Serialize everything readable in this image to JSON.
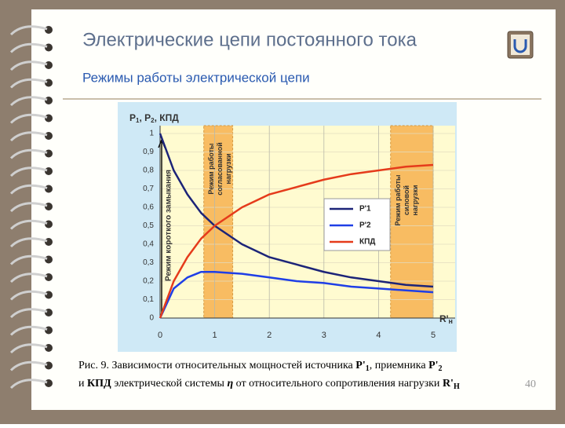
{
  "header": {
    "title": "Электрические цепи постоянного тока",
    "subtitle": "Режимы работы электрической цепи"
  },
  "chart_data": {
    "type": "line",
    "y_label": [
      "P",
      "1",
      ", P",
      "2",
      ", КПД"
    ],
    "x_label": [
      "R'",
      "н"
    ],
    "x": [
      0,
      0.25,
      0.5,
      0.75,
      1,
      1.5,
      2,
      2.5,
      3,
      3.5,
      4,
      4.5,
      5
    ],
    "series": [
      {
        "name": "Р'1",
        "color": "#1c2478",
        "values": [
          1,
          0.8,
          0.67,
          0.57,
          0.5,
          0.4,
          0.33,
          0.29,
          0.25,
          0.22,
          0.2,
          0.18,
          0.17
        ]
      },
      {
        "name": "Р'2",
        "color": "#1f3fe6",
        "values": [
          0,
          0.16,
          0.22,
          0.25,
          0.25,
          0.24,
          0.22,
          0.2,
          0.19,
          0.17,
          0.16,
          0.15,
          0.14
        ]
      },
      {
        "name": "КПД",
        "color": "#e53b1b",
        "values": [
          0,
          0.2,
          0.33,
          0.43,
          0.5,
          0.6,
          0.67,
          0.71,
          0.75,
          0.78,
          0.8,
          0.82,
          0.83
        ]
      }
    ],
    "xlim": [
      0,
      5
    ],
    "ylim": [
      0,
      1
    ],
    "xticks": [
      0,
      1,
      2,
      3,
      4,
      5
    ],
    "yticks": [
      0,
      {
        "value": 0.1,
        "label": "0,1"
      },
      {
        "value": 0.2,
        "label": "0,2"
      },
      {
        "value": 0.3,
        "label": "0,3"
      },
      {
        "value": 0.4,
        "label": "0,4"
      },
      {
        "value": 0.5,
        "label": "0,5"
      },
      {
        "value": 0.6,
        "label": "0,6"
      },
      {
        "value": 0.7,
        "label": "0,7"
      },
      {
        "value": 0.8,
        "label": "0,8"
      },
      {
        "value": 0.9,
        "label": "0,9"
      },
      1
    ],
    "grid": true,
    "short_circuit_label": "Режим короткого замыкания",
    "bands": [
      {
        "xrange": [
          0.8,
          1.33
        ],
        "label": [
          "Режим работы",
          "согласованной",
          "нагрузки"
        ]
      },
      {
        "xrange": [
          4.22,
          5
        ],
        "label": [
          "Режим работы",
          "силовой",
          "нагрузки"
        ]
      }
    ]
  },
  "caption": {
    "line1": [
      "Рис. 9. Зависимости относительных мощностей источника ",
      "P'",
      "1",
      ", приемника ",
      "P'",
      "2"
    ],
    "line2": [
      "и ",
      "КПД",
      " электрической системы ",
      "η",
      " от относительного сопротивления нагрузки ",
      "R'",
      "Н"
    ]
  },
  "page_number": "40"
}
